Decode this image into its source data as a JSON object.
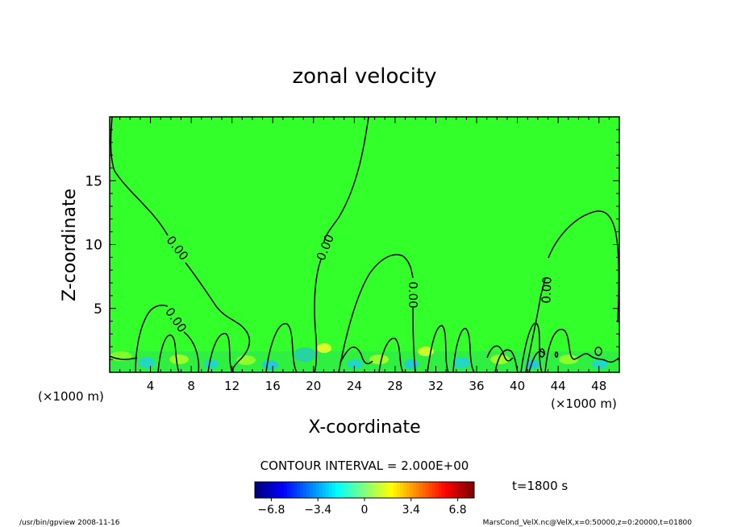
{
  "chart_data": {
    "type": "heatmap",
    "title": "zonal velocity",
    "xlabel": "X-coordinate",
    "ylabel": "Z-coordinate",
    "x_unit": "(×1000 m)",
    "xlim": [
      0,
      50
    ],
    "ylim": [
      0,
      20
    ],
    "x_ticks": [
      "4",
      "8",
      "12",
      "16",
      "20",
      "24",
      "28",
      "32",
      "36",
      "40",
      "44",
      "48"
    ],
    "y_ticks": [
      "5",
      "10",
      "15"
    ],
    "contour_interval": "CONTOUR INTERVAL = 2.000E+00",
    "contour_labels": [
      "0.00",
      "0.00",
      "0.00",
      "0.00",
      "0.00",
      "0.00"
    ],
    "colorbar": {
      "min": -8,
      "max": 8,
      "tick_labels": [
        "−6.8",
        "−3.4",
        "0",
        "3.4",
        "6.8"
      ]
    },
    "time_label": "t=1800 s",
    "footer_left": "/usr/bin/gpview   2008-11-16",
    "footer_right": "MarsCond_VelX.nc@VelX,x=0:50000,z=0:20000,t=01800",
    "colors": {
      "field_background": "#33ff2b",
      "contour_line": "#000000"
    }
  }
}
